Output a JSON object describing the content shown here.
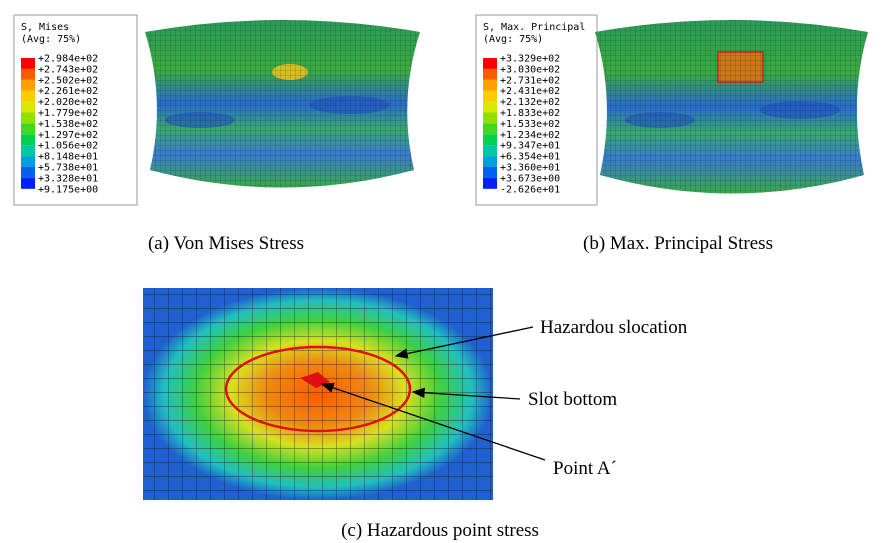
{
  "panels": [
    {
      "legend": {
        "title": [
          "S, Mises",
          "(Avg: 75%)"
        ],
        "values": [
          "+2.984e+02",
          "+2.743e+02",
          "+2.502e+02",
          "+2.261e+02",
          "+2.020e+02",
          "+1.779e+02",
          "+1.538e+02",
          "+1.297e+02",
          "+1.056e+02",
          "+8.148e+01",
          "+5.738e+01",
          "+3.328e+01",
          "+9.175e+00"
        ]
      },
      "caption": "(a) Von Mises Stress"
    },
    {
      "legend": {
        "title": [
          "S, Max. Principal",
          "(Avg: 75%)"
        ],
        "values": [
          "+3.329e+02",
          "+3.030e+02",
          "+2.731e+02",
          "+2.431e+02",
          "+2.132e+02",
          "+1.833e+02",
          "+1.533e+02",
          "+1.234e+02",
          "+9.347e+01",
          "+6.354e+01",
          "+3.360e+01",
          "+3.673e+00",
          "-2.626e+01"
        ]
      },
      "caption": "(b) Max. Principal Stress"
    }
  ],
  "detail": {
    "annotations": [
      "Hazardou slocation",
      "Slot bottom",
      "Point A´"
    ],
    "caption": "(c) Hazardous point stress"
  }
}
